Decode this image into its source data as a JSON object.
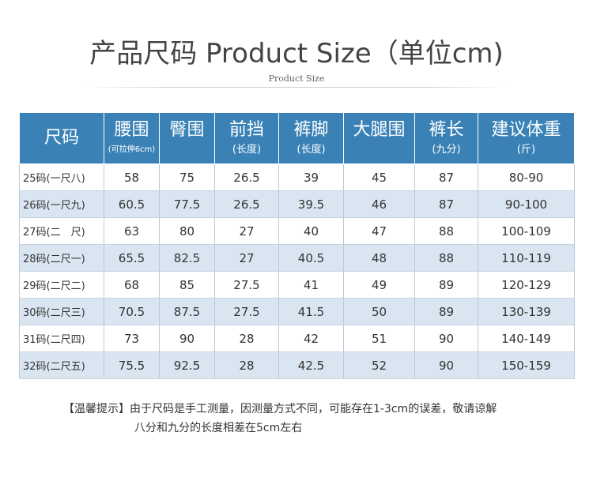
{
  "header": {
    "title": "产品尺码 Product Size（单位cm)",
    "subtitle": "Product Size"
  },
  "table": {
    "headers": [
      {
        "main": "尺码",
        "sub": ""
      },
      {
        "main": "腰围",
        "sub": "(可拉伸6cm)"
      },
      {
        "main": "臀围",
        "sub": ""
      },
      {
        "main": "前挡",
        "sub": "(长度)"
      },
      {
        "main": "裤脚",
        "sub": "(长度)"
      },
      {
        "main": "大腿围",
        "sub": ""
      },
      {
        "main": "裤长",
        "sub": "(九分)"
      },
      {
        "main": "建议体重",
        "sub": "(斤)"
      }
    ],
    "rows": [
      [
        "25码(一尺八)",
        "58",
        "75",
        "26.5",
        "39",
        "45",
        "87",
        "80-90"
      ],
      [
        "26码(一尺九)",
        "60.5",
        "77.5",
        "26.5",
        "39.5",
        "46",
        "87",
        "90-100"
      ],
      [
        "27码(二　尺)",
        "63",
        "80",
        "27",
        "40",
        "47",
        "88",
        "100-109"
      ],
      [
        "28码(二尺一)",
        "65.5",
        "82.5",
        "27",
        "40.5",
        "48",
        "88",
        "110-119"
      ],
      [
        "29码(二尺二)",
        "68",
        "85",
        "27.5",
        "41",
        "49",
        "89",
        "120-129"
      ],
      [
        "30码(二尺三)",
        "70.5",
        "87.5",
        "27.5",
        "41.5",
        "50",
        "89",
        "130-139"
      ],
      [
        "31码(二尺四)",
        "73",
        "90",
        "28",
        "42",
        "51",
        "90",
        "140-149"
      ],
      [
        "32码(二尺五)",
        "75.5",
        "92.5",
        "28",
        "42.5",
        "52",
        "90",
        "150-159"
      ]
    ]
  },
  "note": {
    "line1": "【温馨提示】由于尺码是手工测量，因测量方式不同，可能存在1-3cm的误差，敬请谅解",
    "line2": "八分和九分的长度相差在5cm左右"
  },
  "colors": {
    "header_bg": "#3a82b6",
    "row_alt": "#d9e6f1"
  }
}
